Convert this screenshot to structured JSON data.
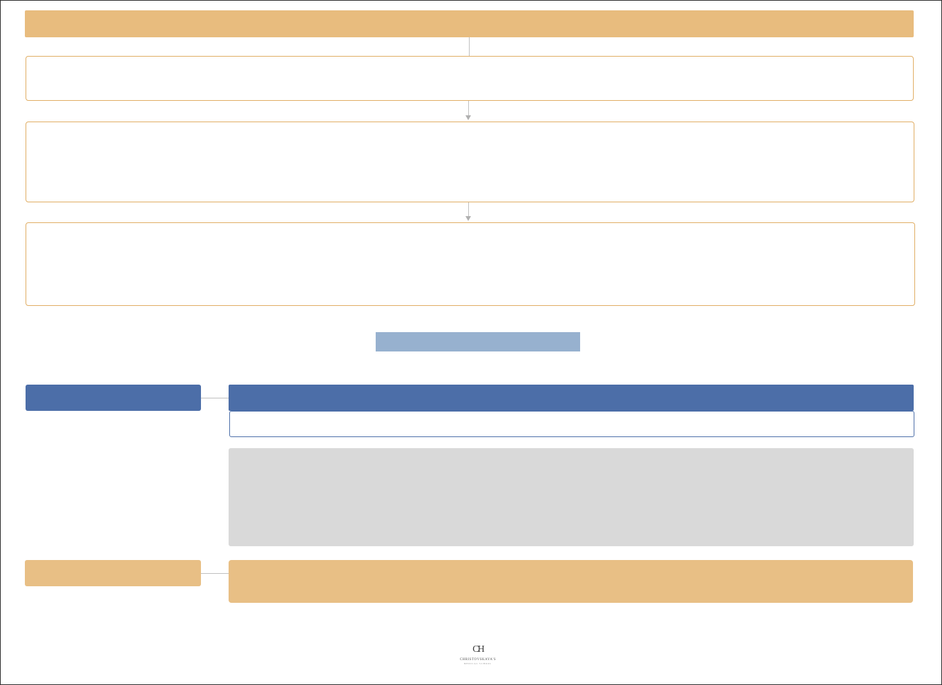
{
  "header": {
    "title": ""
  },
  "steps": [
    {
      "text": ""
    },
    {
      "text": ""
    },
    {
      "text": ""
    }
  ],
  "center_label": "",
  "blue_section": {
    "left_label": "",
    "right_title": "",
    "right_subtitle": ""
  },
  "gray_panel": {
    "text": ""
  },
  "gold_section": {
    "left_label": "",
    "right_text": ""
  },
  "logo": {
    "mark": "CH",
    "name": "CHRISTOVSKAYA'S",
    "sub": "MEDICAL SCHOOL"
  },
  "colors": {
    "gold": "#e8bc7e",
    "gold_border": "#e0ad63",
    "blue": "#4c6ea8",
    "light_blue": "#97b1cf",
    "gray": "#d9d9d9"
  }
}
